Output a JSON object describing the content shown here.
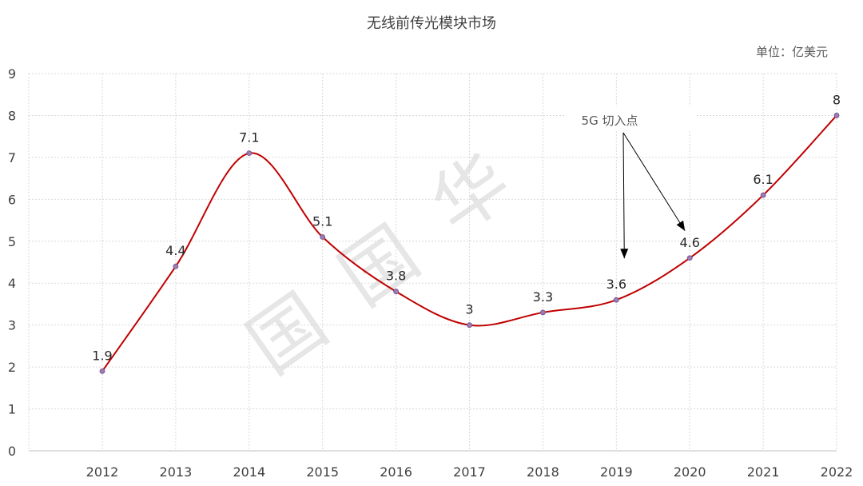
{
  "chart_data": {
    "type": "line",
    "title": "无线前传光模块市场",
    "unit_label": "单位：亿美元",
    "categories": [
      "2012",
      "2013",
      "2014",
      "2015",
      "2016",
      "2017",
      "2018",
      "2019",
      "2020",
      "2021",
      "2022"
    ],
    "series": [
      {
        "values": [
          1.9,
          4.4,
          7.1,
          5.1,
          3.8,
          3,
          3.3,
          3.6,
          4.6,
          6.1,
          8
        ],
        "color": "#c00000"
      }
    ],
    "data_labels": [
      "1.9",
      "4.4",
      "7.1",
      "5.1",
      "3.8",
      "3",
      "3.3",
      "3.6",
      "4.6",
      "6.1",
      "8"
    ],
    "y_ticks": [
      "0",
      "1",
      "2",
      "3",
      "4",
      "5",
      "6",
      "7",
      "8",
      "9"
    ],
    "ylim": [
      0,
      9
    ],
    "grid": true,
    "smooth": true,
    "annotation": {
      "text": "5G 切入点",
      "targets": [
        "2019",
        "2020"
      ]
    },
    "watermark": [
      "国",
      "国",
      "华"
    ],
    "marker_color": "#9e7bb5"
  }
}
